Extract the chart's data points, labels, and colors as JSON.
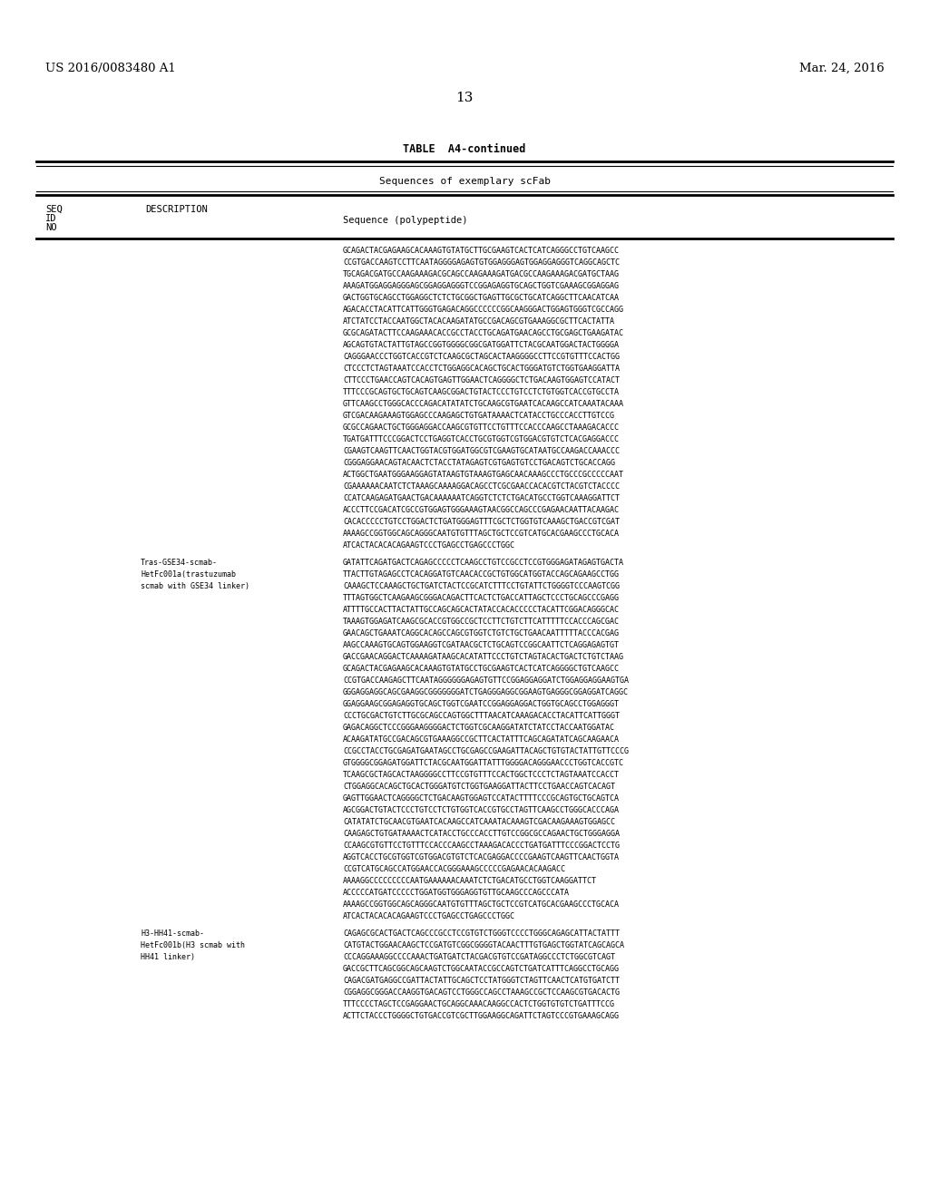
{
  "background_color": "#ffffff",
  "header_left": "US 2016/0083480 A1",
  "header_right": "Mar. 24, 2016",
  "page_number": "13",
  "table_title": "TABLE  A4-continued",
  "table_subtitle": "Sequences of exemplary scFab",
  "seq1_lines": [
    "GCAGACTACGAGAAGCACAAAGTGTATGCTTGCGAAGTCACTCATCAGGGCCTGTCAAGCC",
    "CCGTGACCAAGTCCTTCAATAGGGGAGAGTGTGGAGGGAGTGGAGGAGGGTCAGGCAGCTC",
    "TGCAGACGATGCCAAGAAAGACGCAGCCAAGAAAGATGACGCCAAGAAAGACGATGCTAAG",
    "AAAGATGGAGGAGGGAGCGGAGGAGGGTCCGGAGAGGTGCAGCTGGTCGAAAGCGGAGGAG",
    "GACTGGTGCAGCCTGGAGGCTCTCTGCGGCTGAGTTGCGCTGCATCAGGCTTCAACATCAA",
    "AGACACCTACATTCATTGGGTGAGACAGGCCCCCCGGCAAGGGACTGGAGTGGGTCGCCAGG",
    "ATCTATCCTACCAATGGCTACACAAGATATGCCGACAGCGTGAAAGGCGCTTCACTATTA",
    "GCGCAGATACTTCCAAGAAACACCGCCTACCTGCAGATGAACAGCCTGCGAGCTGAAGATAC",
    "AGCAGTGTACTATTGTAGCCGGTGGGGCGGCGATGGATTCTACGCAATGGACTACTGGGGA",
    "CAGGGAACCCTGGTCACCGTCTCAAGCGCTAGCACTAAGGGGCCTTCCGTGTTTCCACTGG",
    "CTCCCTCTAGTAAATCCACCTCTGGAGGCACAGCTGCACTGGGATGTCTGGTGAAGGATTA",
    "CTTCCCTGAACCAGTCACAGTGAGTTGGAACTCAGGGGCTCTGACAAGTGGAGTCCATACT",
    "TTTCCCGCAGTGCTGCAGTCAAGCGGACTGTACTCCCTGTCCTCTGTGGTCACCGTGCCTA",
    "GTTCAAGCCTGGGCACCCAGACATATATCTGCAAGCGTGAATCACAAGCCATCAAATACAAA",
    "GTCGACAAGAAAGTGGAGCCCAAGAGCTGTGATAAAACTCATACCTGCCCACCTTGTCCG",
    "GCGCCAGAACTGCTGGGAGGACCAAGCGTGTTCCTGTTTCCACCCAAGCCTAAAGACACCC",
    "TGATGATTTCCCGGACTCCTGAGGTCACCTGCGTGGTCGTGGACGTGTCTCACGAGGACCC",
    "CGAAGTCAAGTTCAACTGGTACGTGGATGGCGTCGAAGTGCATAATGCCAAGACCAAACCC",
    "CGGGAGGAACAGTACAACTCTACCTATAGAGTCGTGAGTGTCCTGACAGTCTGCACCAGG",
    "ACTGGCTGAATGGGAAGGAGTATAAGTGTAAAGTGAGCAACAAAGCCCTGCCCGCCCCCAAT",
    "CGAAAAAACAATCTCTAAAGCAAAAGGACAGCCTCGCGAACCACACGTCTACGTCTACCCC",
    "CCATCAAGAGATGAACTGACAAAAAATCAGGTCTCTCTGACATGCCTGGTCAAAGGATTCT",
    "ACCCTTCCGACATCGCCGTGGAGTGGGAAAGTAACGGCCAGCCCGAGAACAATTACAAGAC",
    "CACACCCCCTGTCCTGGACTCTGATGGGAGTTTCGCTCTGGTGTCAAAGCTGACCGTCGAT",
    "AAAAGCCGGTGGCAGCAGGGCAATGTGTTTAGCTGCTCCGTCATGCACGAAGCCCTGCACA",
    "ATCACTACACACAGAAGTCCCTGAGCCTGAGCCCTGGC"
  ],
  "seq2_desc": "Tras-GSE34-scmab-\nHetFc001a(trastuzumab\nscmab with GSE34 linker)",
  "seq2_lines": [
    "GATATTCAGATGACTCAGAGCCCCCTCAAGCCTGTCCGCCTCCGTGGGAGATAGAGTGACTA",
    "TTACTTGTAGAGCCTCACAGGATGTCAACACCGCTGTGGCATGGTACCAGCAGAAGCCTGG",
    "CAAAGCTCCAAAGCTGCTGATCTACTCCGCATCTTTCCTGTATTCTGGGGTCCCAAGTCGG",
    "TTTAGTGGCTCAAGAAGCGGGACAGACTTCACTCTGACCATTAGCTCCCTGCAGCCCGAGG",
    "ATTTTGCCACTTACTATTGCCAGCAGCACTATACCACACCCCCTACATTCGGACAGGGCAC",
    "TAAAGTGGAGATCAAGCGCACCGTGGCCGCTCCTTCTGTCTTCATTTTTCCACCCAGCGAC",
    "GAACAGCTGAAATCAGGCACAGCCAGCGTGGTCTGTCTGCTGAACAATTTTTACCCACGAG",
    "AAGCCAAAGTGCAGTGGAAGGTCGATAACGCTCTGCAGTCCGGCAATTCTCAGGAGAGTGT",
    "GACCGAACAGGACTCAAAAGATAAGCACATATTCCCTGTCTAGTACACTGACTCTGTCTAAG",
    "GCAGACTACGAGAAGCACAAAGTGTATGCCTGCGAAGTCACTCATCAGGGGCTGTCAAGCC",
    "CCGTGACCAAGAGCTTCAATAGGGGGGAGAGTGTTCCGGAGGAGGATCTGGAGGAGGAAGTGA",
    "GGGAGGAGGCAGCGAAGGCGGGGGGGATCTGAGGGAGGCGGAAGTGAGGGCGGAGGATCAGGC",
    "GGAGGAAGCGGAGAGGTGCAGCTGGTCGAATCCGGAGGAGGACTGGTGCAGCCTGGAGGGT",
    "CCCTGCGACTGTCTTGCGCAGCCAGTGGCTTTAACATCAAAGACACCTACATTCATTGGGT",
    "GAGACAGGCTCCCGGGAAGGGGACTCTGGTCGCAAGGATATCTATCCTACCAATGGATAC",
    "ACAAGATATGCCGACAGCGTGAAAGGCCGCTTCACTATTTCAGCAGATATCAGCAAGAACA",
    "CCGCCTACCTGCGAGATGAATAGCCTGCGAGCCGAAGATTACAGCTGTGTACTATTGTTCCCG",
    "GTGGGGCGGAGATGGATTCTACGCAATGGATTATTTGGGGACAGGGAACCCTGGTCACCGTC",
    "TCAAGCGCTAGCACTAAGGGGCCTTCCGTGTTTCCACTGGCTCCCTCTAGTAAATCCACCT",
    "CTGGAGGCACAGCTGCACTGGGATGTCTGGTGAAGGATTACTTCCTGAACCAGTCACAGT",
    "GAGTTGGAACTCAGGGGCTCTGACAAGTGGAGTCCATACTTTTCCCGCAGTGCTGCAGTCA",
    "AGCGGACTGTACTCCCTGTCCTCTGTGGTCACCGTGCCTAGTTCAAGCCTGGGCACCCAGA",
    "CATATATCTGCAACGTGAATCACAAGCCATCAAATACAAAGTCGACAAGAAAGTGGAGCC",
    "CAAGAGCTGTGATAAAACTCATACCTGCCCACCTTGTCCGGCGCCAGAACTGCTGGGAGGA",
    "CCAAGCGTGTTCCTGTTTCCACCCAAGCCTAAAGACACCCTGATGATTTCCCGGACTCCTG",
    "AGGTCACCTGCGTGGTCGTGGACGTGTCTCACGAGGACCCCGAAGTCAAGTTCAACTGGTA",
    "CCGTCATGCAGCCATGGAACCACGGGAAAGCCCCCGAGAACACAAGACC",
    "AAAAGGCCCCCCCCCAATGAAAAAACAAATCTCTGACATGCCTGGTCAAGGATTCT",
    "ACCCCCATGATCCCCCTGGATGGTGGGAGGTGTTGCAAGCCCAGCCCATA",
    "AAAAGCCGGTGGCAGCAGGGCAATGTGTTTAGCTGCTCCGTCATGCACGAAGCCCTGCACA",
    "ATCACTACACACAGAAGTCCCTGAGCCTGAGCCCTGGC"
  ],
  "seq3_desc": "H3-HH41-scmab-\nHetFc001b(H3 scmab with\nHH41 linker)",
  "seq3_lines": [
    "CAGAGCGCACTGACTCAGCCCGCCTCCGTGTCTGGGTCCCCTGGGCAGAGCATTACTATTT",
    "CATGTACTGGAACAAGCTCCGATGTCGGCGGGGTACAACTTTGTGAGCTGGTATCAGCAGCA",
    "CCCAGGAAAGGCCCCAAACTGATGATCTACGACGTGTCCGATAGGCCCTCTGGCGTCAGT",
    "GACCGCTTCAGCGGCAGCAAGTCTGGCAATACCGCCAGTCTGATCATTTCAGGCCTGCAGG",
    "CAGACGATGAGGCCGATTACTATTGCAGCTCCTATGGGTCTAGTTCAACTCATGTGATCTT",
    "CGGAGGCGGGACCAAGGTGACAGTCCTGGGCCAGCCTAAAGCCGCTCCAAGCGTGACACTG",
    "TTTCCCCTAGCTCCGAGGAACTGCAGGCAAACAAGGCCACTCTGGTGTGTCTGATTTCCG",
    "ACTTCTACCCTGGGGCTGTGACCGTCGCTTGGAAGGCAGATTCTAGTCCCGTGAAAGCAGG"
  ]
}
